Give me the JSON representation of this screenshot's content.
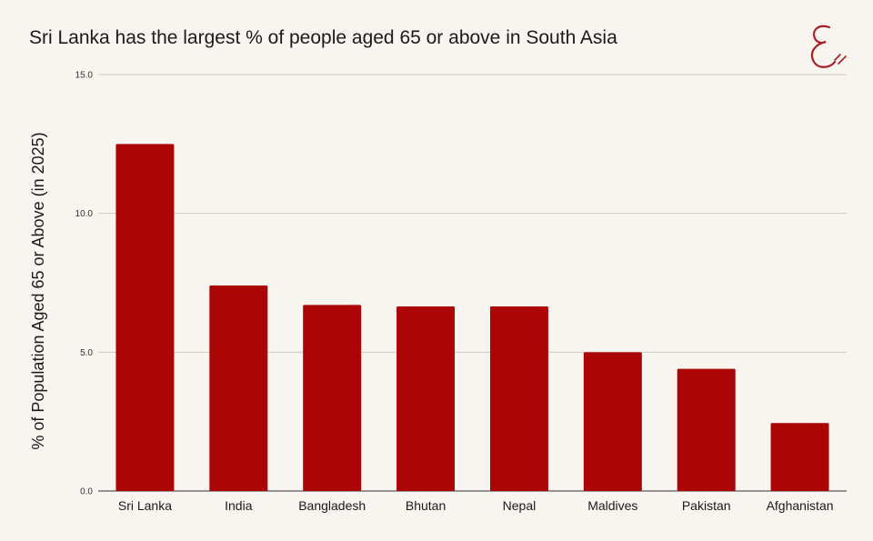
{
  "logo_color": "#a91d22",
  "chart_data": {
    "type": "bar",
    "title": "Sri Lanka has the largest % of people aged 65 or above in South Asia",
    "xlabel": "",
    "ylabel": "% of Population Aged 65 or Above (in 2025)",
    "categories": [
      "Sri Lanka",
      "India",
      "Bangladesh",
      "Bhutan",
      "Nepal",
      "Maldives",
      "Pakistan",
      "Afghanistan"
    ],
    "values": [
      12.5,
      7.4,
      6.7,
      6.65,
      6.65,
      5.0,
      4.4,
      2.45
    ],
    "ylim": [
      0,
      15
    ],
    "yticks": [
      "0.0",
      "5.0",
      "10.0",
      "15.0"
    ],
    "bar_color": "#ac0505",
    "grid": true
  }
}
